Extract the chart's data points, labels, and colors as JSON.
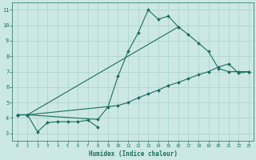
{
  "title": "",
  "xlabel": "Humidex (Indice chaleur)",
  "ylabel": "",
  "bg_color": "#cce8e4",
  "grid_color": "#aacfcb",
  "line_color": "#1a6e60",
  "x_ticks": [
    0,
    1,
    2,
    3,
    4,
    5,
    6,
    7,
    8,
    9,
    10,
    11,
    12,
    13,
    14,
    15,
    16,
    17,
    18,
    19,
    20,
    21,
    22,
    23
  ],
  "y_ticks": [
    3,
    4,
    5,
    6,
    7,
    8,
    9,
    10,
    11
  ],
  "ylim": [
    2.5,
    11.5
  ],
  "xlim": [
    -0.5,
    23.5
  ],
  "line1_x": [
    0,
    1,
    2,
    3,
    4,
    5,
    6,
    7,
    8
  ],
  "line1_y": [
    4.2,
    4.2,
    3.1,
    3.7,
    3.75,
    3.75,
    3.75,
    3.85,
    3.4
  ],
  "line2_x": [
    0,
    1,
    8,
    9,
    10,
    11,
    12,
    13,
    14,
    15,
    16
  ],
  "line2_y": [
    4.2,
    4.2,
    3.9,
    4.7,
    6.7,
    8.3,
    9.5,
    11.0,
    10.4,
    10.6,
    9.9
  ],
  "line3_x": [
    0,
    1,
    16,
    17,
    18,
    19,
    20,
    21,
    22,
    23
  ],
  "line3_y": [
    4.2,
    4.2,
    9.9,
    9.4,
    8.85,
    8.3,
    7.2,
    7.0,
    7.0,
    7.0
  ],
  "line4_x": [
    0,
    1,
    10,
    11,
    12,
    13,
    14,
    15,
    16,
    17,
    18,
    19,
    20,
    21,
    22,
    23
  ],
  "line4_y": [
    4.2,
    4.2,
    4.8,
    5.0,
    5.3,
    5.55,
    5.8,
    6.1,
    6.3,
    6.55,
    6.8,
    7.0,
    7.3,
    7.5,
    6.9,
    7.0
  ]
}
